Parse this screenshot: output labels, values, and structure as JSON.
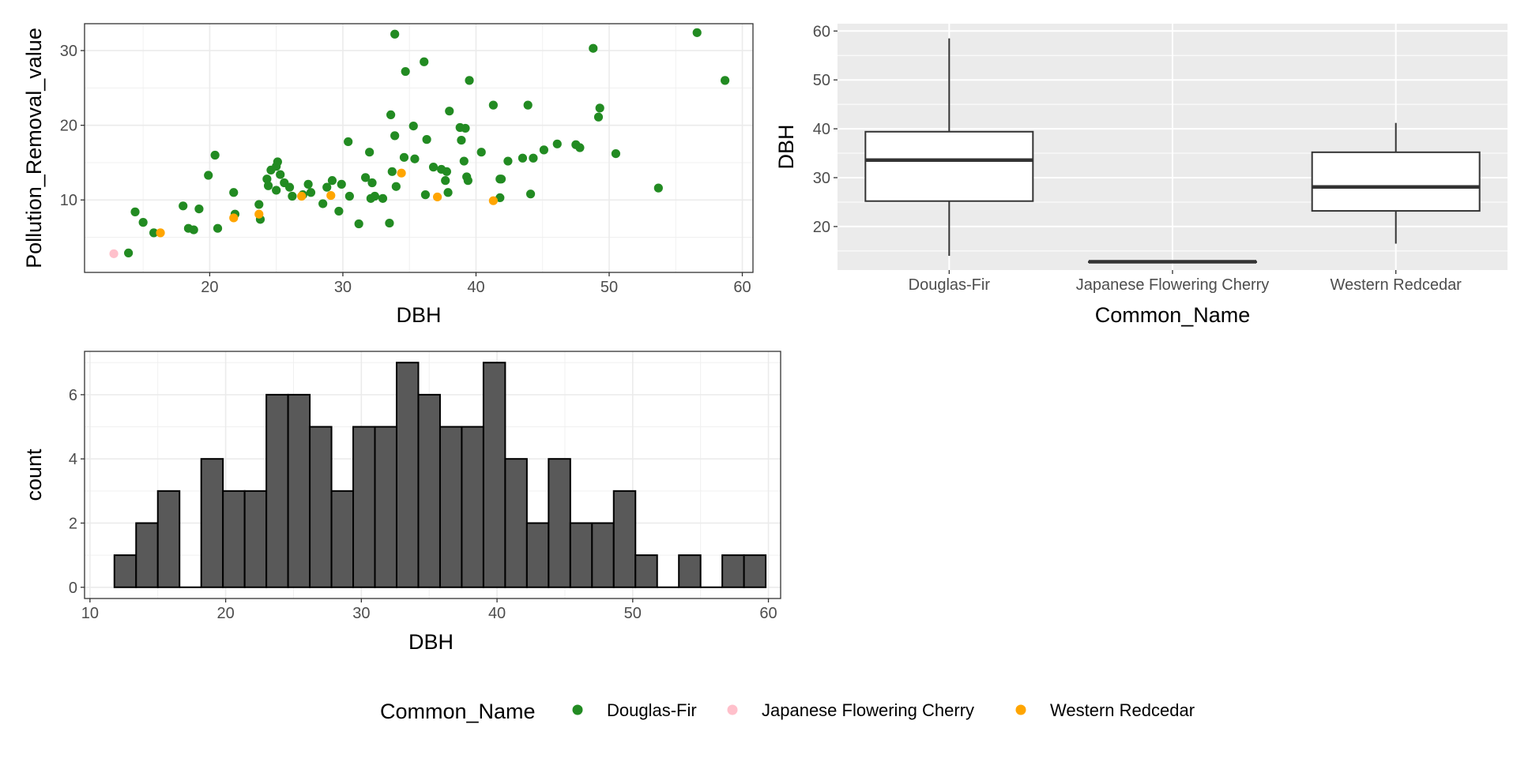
{
  "legend": {
    "title": "Common_Name",
    "entries": [
      {
        "label": "Douglas-Fir",
        "color": "#228b22"
      },
      {
        "label": "Japanese Flowering Cherry",
        "color": "#ffc0cb"
      },
      {
        "label": "Western Redcedar",
        "color": "#ffa500"
      }
    ]
  },
  "chart_data": [
    {
      "type": "scatter",
      "id": "scatter",
      "title": "",
      "xlabel": "DBH",
      "ylabel": "Pollution_Removal_value",
      "xlim": [
        10.6,
        60.8
      ],
      "ylim": [
        0.3,
        33.6
      ],
      "xticks": [
        20,
        30,
        40,
        50,
        60
      ],
      "yticks": [
        10,
        20,
        30
      ],
      "grid": true,
      "series": [
        {
          "name": "Douglas-Fir",
          "color": "#228b22",
          "x": [
            13.9,
            14.4,
            15.0,
            15.8,
            18.0,
            18.4,
            18.8,
            19.2,
            19.9,
            20.4,
            20.6,
            21.8,
            21.9,
            23.7,
            23.8,
            24.3,
            24.4,
            24.6,
            25.0,
            25.0,
            25.1,
            25.3,
            25.6,
            26.0,
            26.2,
            27.0,
            27.4,
            27.6,
            28.5,
            28.8,
            29.2,
            29.7,
            29.9,
            30.4,
            30.5,
            31.2,
            31.7,
            32.0,
            32.1,
            32.2,
            32.4,
            33.0,
            33.5,
            33.6,
            33.7,
            33.9,
            33.9,
            34.0,
            34.6,
            34.7,
            35.3,
            35.4,
            36.1,
            36.2,
            36.3,
            36.8,
            37.4,
            37.7,
            37.8,
            37.9,
            38.0,
            38.8,
            38.9,
            39.1,
            39.2,
            39.3,
            39.4,
            39.5,
            40.4,
            41.3,
            41.8,
            41.8,
            41.9,
            42.4,
            43.5,
            43.9,
            44.1,
            44.3,
            45.1,
            46.1,
            47.5,
            47.8,
            48.8,
            49.2,
            49.3,
            50.5,
            53.7,
            56.6,
            58.7
          ],
          "y": [
            2.9,
            8.4,
            7.0,
            5.6,
            9.2,
            6.2,
            6.0,
            8.8,
            13.3,
            16.0,
            6.2,
            11.0,
            8.1,
            9.4,
            7.4,
            12.8,
            11.9,
            14.0,
            11.3,
            14.5,
            15.1,
            13.4,
            12.3,
            11.7,
            10.5,
            10.7,
            12.1,
            11.0,
            9.5,
            11.7,
            12.6,
            8.5,
            12.1,
            17.8,
            10.5,
            6.8,
            13.0,
            16.4,
            10.2,
            12.3,
            10.5,
            10.2,
            6.9,
            21.4,
            13.8,
            32.2,
            18.6,
            11.8,
            15.7,
            27.2,
            19.9,
            15.5,
            28.5,
            10.7,
            18.1,
            14.4,
            14.1,
            12.6,
            13.8,
            11.0,
            21.9,
            19.7,
            18.0,
            15.2,
            19.6,
            13.1,
            12.6,
            26.0,
            16.4,
            22.7,
            10.3,
            12.8,
            12.8,
            15.2,
            15.6,
            22.7,
            10.8,
            15.6,
            16.7,
            17.5,
            17.4,
            17.0,
            30.3,
            21.1,
            22.3,
            16.2,
            11.6,
            32.4,
            26.0
          ]
        },
        {
          "name": "Japanese Flowering Cherry",
          "color": "#ffc0cb",
          "x": [
            12.8
          ],
          "y": [
            2.8
          ]
        },
        {
          "name": "Western Redcedar",
          "color": "#ffa500",
          "x": [
            16.3,
            21.8,
            23.7,
            26.9,
            29.1,
            34.4,
            37.1,
            41.3
          ],
          "y": [
            5.6,
            7.6,
            8.1,
            10.5,
            10.6,
            13.6,
            10.4,
            9.9
          ]
        }
      ]
    },
    {
      "type": "box",
      "id": "boxplot",
      "title": "",
      "xlabel": "Common_Name",
      "ylabel": "DBH",
      "ylim": [
        11.1,
        61.5
      ],
      "yticks": [
        20,
        30,
        40,
        50,
        60
      ],
      "grid": true,
      "categories": [
        "Douglas-Fir",
        "Japanese Flowering Cherry",
        "Western Redcedar"
      ],
      "boxes": [
        {
          "category": "Douglas-Fir",
          "whisker_low": 14.0,
          "q1": 25.2,
          "median": 33.6,
          "q3": 39.4,
          "whisker_high": 58.5
        },
        {
          "category": "Japanese Flowering Cherry",
          "whisker_low": 12.8,
          "q1": 12.8,
          "median": 12.8,
          "q3": 12.8,
          "whisker_high": 12.8
        },
        {
          "category": "Western Redcedar",
          "whisker_low": 16.5,
          "q1": 23.2,
          "median": 28.1,
          "q3": 35.2,
          "whisker_high": 41.2
        }
      ]
    },
    {
      "type": "histogram",
      "id": "histogram",
      "title": "",
      "xlabel": "DBH",
      "ylabel": "count",
      "xlim": [
        9.6,
        60.9
      ],
      "ylim": [
        -0.35,
        7.35
      ],
      "xticks": [
        10,
        20,
        30,
        40,
        50,
        60
      ],
      "yticks": [
        0,
        2,
        4,
        6
      ],
      "grid": true,
      "bin_start": 11.8,
      "bin_width": 1.6,
      "counts": [
        1,
        2,
        3,
        0,
        4,
        3,
        3,
        6,
        6,
        5,
        3,
        5,
        5,
        7,
        6,
        5,
        5,
        7,
        4,
        2,
        4,
        2,
        2,
        3,
        1,
        0,
        1,
        0,
        1,
        1
      ]
    }
  ]
}
